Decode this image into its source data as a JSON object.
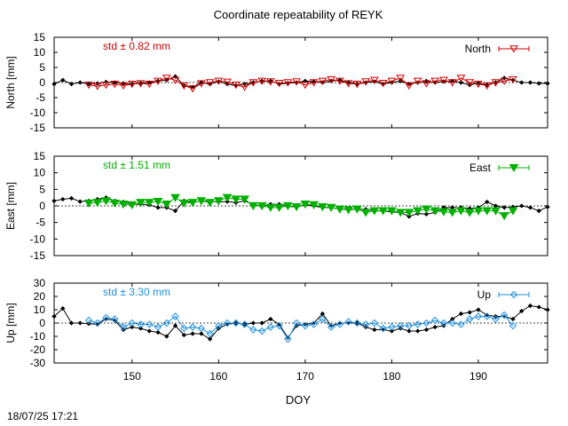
{
  "title": "Coordinate repeatability of REYK",
  "timestamp": "18/07/25 17:21",
  "xlabel": "DOY",
  "chart_data": [
    {
      "type": "line",
      "ylabel": "North [mm]",
      "ylim": [
        -15,
        15
      ],
      "yticks": [
        15,
        10,
        5,
        0,
        -5,
        -10,
        -15
      ],
      "xlim": [
        141,
        198
      ],
      "xticks": [
        150,
        160,
        170,
        180,
        190
      ],
      "std_label": "std ± 0.82 mm",
      "accent": "#d00000",
      "legend": "North",
      "legend_marker": "triangle-down-open",
      "series": [
        {
          "x": [
            141,
            142,
            143,
            144,
            145,
            146,
            147,
            148,
            149,
            150,
            151,
            152,
            153,
            154,
            155,
            156,
            157,
            158,
            159,
            160,
            161,
            162,
            163,
            164,
            165,
            166,
            167,
            168,
            169,
            170,
            171,
            172,
            173,
            174,
            175,
            176,
            177,
            178,
            179,
            180,
            181,
            182,
            183,
            184,
            185,
            186,
            187,
            188,
            189,
            190,
            191,
            192,
            193,
            194,
            195,
            196,
            197,
            198
          ],
          "y": [
            -0.5,
            0.8,
            -0.5,
            0.0,
            -0.5,
            -0.3,
            0.2,
            0.0,
            -0.3,
            -0.5,
            -0.2,
            0.0,
            0.5,
            0.8,
            2.0,
            -1.0,
            -1.5,
            0.0,
            -0.5,
            0.3,
            -0.5,
            -1.0,
            -0.5,
            0.0,
            0.5,
            0.5,
            -0.5,
            -0.2,
            0.0,
            0.5,
            0.3,
            0.0,
            0.5,
            0.8,
            0.0,
            -0.5,
            0.0,
            0.3,
            -0.5,
            0.0,
            0.5,
            -0.5,
            0.0,
            0.5,
            0.0,
            0.3,
            0.5,
            0.0,
            -0.8,
            -0.2,
            -0.8,
            0.0,
            1.5,
            0.8,
            0.0,
            0.0,
            -0.3,
            -0.3
          ]
        },
        {
          "x": [
            145,
            146,
            147,
            148,
            149,
            150,
            151,
            152,
            153,
            154,
            155,
            156,
            157,
            158,
            159,
            160,
            161,
            162,
            163,
            164,
            165,
            166,
            167,
            168,
            169,
            170,
            171,
            172,
            173,
            174,
            175,
            176,
            177,
            178,
            179,
            180,
            181,
            182,
            183,
            184,
            185,
            186,
            187,
            188,
            189,
            190,
            191,
            192,
            193,
            194
          ],
          "y": [
            -0.8,
            -1.2,
            -0.8,
            -0.5,
            -1.0,
            -0.5,
            -0.3,
            -0.5,
            0.5,
            1.5,
            0.8,
            -1.0,
            -2.0,
            -0.3,
            0.0,
            0.5,
            0.2,
            -0.8,
            -1.5,
            0.0,
            0.5,
            0.3,
            -0.2,
            0.0,
            0.3,
            -0.8,
            0.0,
            0.5,
            1.0,
            0.5,
            -0.3,
            -0.5,
            0.3,
            0.8,
            -0.2,
            0.5,
            1.5,
            -1.0,
            0.5,
            -0.3,
            0.5,
            0.8,
            0.0,
            1.5,
            0.0,
            -0.5,
            -1.0,
            0.0,
            0.5,
            1.0
          ]
        }
      ]
    },
    {
      "type": "line",
      "ylabel": "East [mm]",
      "ylim": [
        -15,
        15
      ],
      "yticks": [
        15,
        10,
        5,
        0,
        -5,
        -10,
        -15
      ],
      "xlim": [
        141,
        198
      ],
      "xticks": [
        150,
        160,
        170,
        180,
        190
      ],
      "std_label": "std ± 1.51 mm",
      "accent": "#00b000",
      "legend": "East",
      "legend_marker": "triangle-down-filled",
      "series": [
        {
          "x": [
            141,
            142,
            143,
            144,
            145,
            146,
            147,
            148,
            149,
            150,
            151,
            152,
            153,
            154,
            155,
            156,
            157,
            158,
            159,
            160,
            161,
            162,
            163,
            164,
            165,
            166,
            167,
            168,
            169,
            170,
            171,
            172,
            173,
            174,
            175,
            176,
            177,
            178,
            179,
            180,
            181,
            182,
            183,
            184,
            185,
            186,
            187,
            188,
            189,
            190,
            191,
            192,
            193,
            194,
            195,
            196,
            197,
            198
          ],
          "y": [
            1.5,
            2.0,
            2.3,
            1.3,
            1.5,
            2.0,
            2.5,
            1.5,
            1.2,
            0.5,
            0.5,
            0.3,
            -0.5,
            -0.5,
            -1.5,
            1.5,
            1.0,
            1.5,
            1.3,
            1.2,
            1.3,
            1.0,
            1.5,
            0.5,
            -0.3,
            0.5,
            0.5,
            -0.2,
            -0.3,
            0.3,
            0.0,
            -0.5,
            -0.5,
            -1.0,
            -1.0,
            -1.0,
            -1.0,
            -1.5,
            -1.5,
            -1.8,
            -2.0,
            -3.2,
            -2.3,
            -2.5,
            -2.0,
            -0.5,
            -0.5,
            -0.5,
            -0.8,
            -0.5,
            1.2,
            0.0,
            -0.5,
            -0.3,
            0.0,
            -0.5,
            -1.5,
            -0.3
          ]
        },
        {
          "x": [
            145,
            146,
            147,
            148,
            149,
            150,
            151,
            152,
            153,
            154,
            155,
            156,
            157,
            158,
            159,
            160,
            161,
            162,
            163,
            164,
            165,
            166,
            167,
            168,
            169,
            170,
            171,
            172,
            173,
            174,
            175,
            176,
            177,
            178,
            179,
            180,
            181,
            182,
            183,
            184,
            185,
            186,
            187,
            188,
            189,
            190,
            191,
            192,
            193,
            194
          ],
          "y": [
            0.8,
            1.0,
            1.5,
            0.8,
            0.5,
            0.3,
            1.0,
            1.0,
            1.3,
            0.5,
            2.5,
            0.8,
            1.0,
            1.5,
            1.0,
            1.5,
            2.5,
            2.0,
            2.0,
            0.0,
            0.0,
            -0.5,
            -0.5,
            0.0,
            -0.3,
            0.5,
            0.3,
            -0.3,
            -0.5,
            -1.0,
            -1.2,
            -1.0,
            -2.0,
            -1.5,
            -1.5,
            -1.5,
            -2.0,
            -2.0,
            -1.5,
            -1.0,
            -1.5,
            -1.8,
            -2.0,
            -1.5,
            -2.0,
            -1.5,
            -1.5,
            -1.5,
            -3.0,
            -1.5
          ]
        }
      ]
    },
    {
      "type": "line",
      "ylabel": "Up [mm]",
      "ylim": [
        -30,
        30
      ],
      "yticks": [
        30,
        20,
        10,
        0,
        -10,
        -20,
        -30
      ],
      "xlim": [
        141,
        198
      ],
      "xticks": [
        150,
        160,
        170,
        180,
        190
      ],
      "std_label": "std ± 3.30 mm",
      "accent": "#1e8fe0",
      "legend": "Up",
      "legend_marker": "diamond-open",
      "series": [
        {
          "x": [
            141,
            142,
            143,
            144,
            145,
            146,
            147,
            148,
            149,
            150,
            151,
            152,
            153,
            154,
            155,
            156,
            157,
            158,
            159,
            160,
            161,
            162,
            163,
            164,
            165,
            166,
            167,
            168,
            169,
            170,
            171,
            172,
            173,
            174,
            175,
            176,
            177,
            178,
            179,
            180,
            181,
            182,
            183,
            184,
            185,
            186,
            187,
            188,
            189,
            190,
            191,
            192,
            193,
            194,
            195,
            196,
            197,
            198
          ],
          "y": [
            5,
            11,
            0,
            0,
            -0.5,
            -1,
            3,
            2,
            -5,
            -3,
            -4,
            -6,
            -7,
            -10,
            -2,
            -9,
            -8,
            -8,
            -12,
            -4,
            -1,
            0,
            -1,
            0,
            0,
            3,
            -1,
            -11,
            -2,
            -1,
            0,
            7,
            -2,
            0,
            0,
            0,
            -3,
            -5,
            -5,
            -6,
            -4,
            -6,
            -6,
            -5,
            -3,
            -2,
            3,
            7,
            8,
            10,
            6,
            5,
            5,
            3,
            9,
            13,
            12,
            10
          ]
        },
        {
          "x": [
            145,
            146,
            147,
            148,
            149,
            150,
            151,
            152,
            153,
            154,
            155,
            156,
            157,
            158,
            159,
            160,
            161,
            162,
            163,
            164,
            165,
            166,
            167,
            168,
            169,
            170,
            171,
            172,
            173,
            174,
            175,
            176,
            177,
            178,
            179,
            180,
            181,
            182,
            183,
            184,
            185,
            186,
            187,
            188,
            189,
            190,
            191,
            192,
            193,
            194
          ],
          "y": [
            2,
            0,
            4,
            3,
            -3,
            0,
            -1,
            -1,
            -3,
            0,
            5,
            -4,
            -3,
            -4,
            -8,
            -2,
            0,
            0,
            -1,
            -5,
            -6,
            -3,
            -2,
            -12,
            0,
            -2,
            -1,
            3,
            -3,
            -1,
            1,
            0,
            -1,
            0,
            -4,
            -3,
            -2,
            -2,
            -1,
            0,
            2,
            0,
            0,
            -1,
            3,
            5,
            5,
            3,
            6,
            -2
          ]
        }
      ]
    }
  ]
}
